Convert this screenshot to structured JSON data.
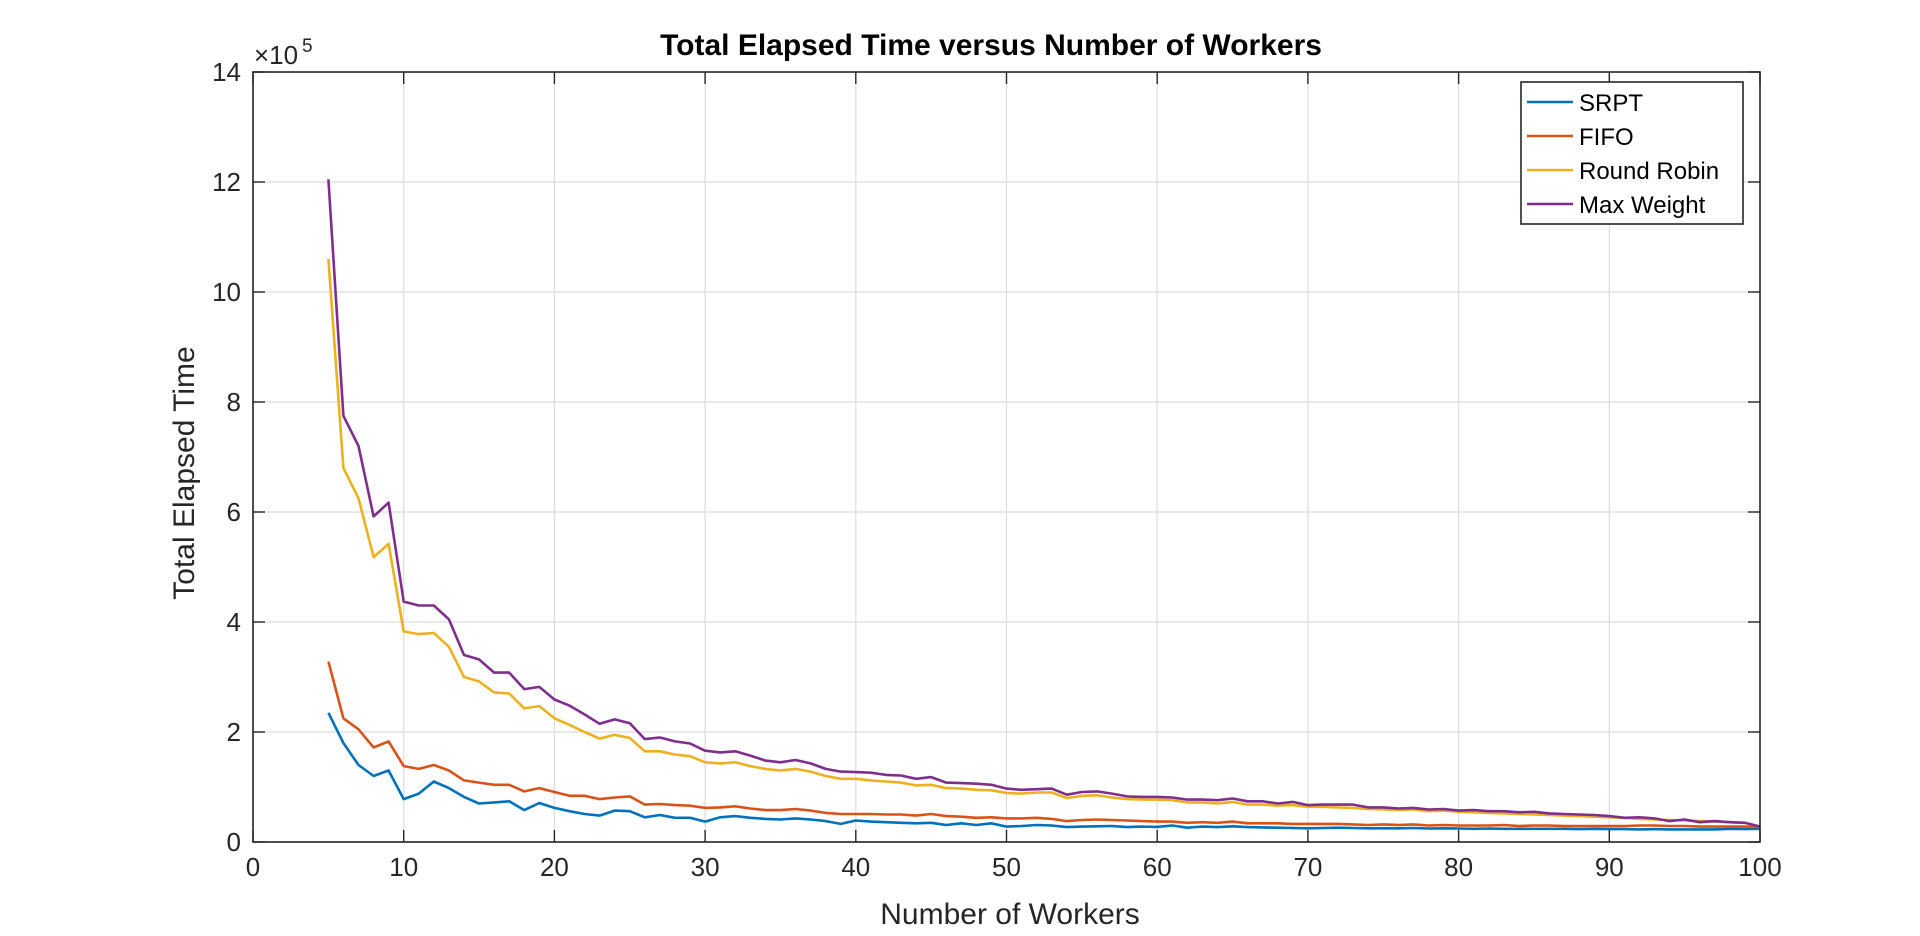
{
  "chart_data": {
    "type": "line",
    "title": "Total Elapsed Time versus Number of Workers",
    "xlabel": "Number of Workers",
    "ylabel": "Total Elapsed Time",
    "xlim": [
      0,
      100
    ],
    "ylim": [
      0,
      1400000
    ],
    "x_ticks": [
      0,
      10,
      20,
      30,
      40,
      50,
      60,
      70,
      80,
      90,
      100
    ],
    "y_ticks": [
      0,
      2,
      4,
      6,
      8,
      10,
      12,
      14
    ],
    "y_exponent_label": "×10",
    "y_exponent_power": "5",
    "grid": true,
    "legend_position": "top-right",
    "x": [
      5,
      6,
      7,
      8,
      9,
      10,
      11,
      12,
      13,
      14,
      15,
      16,
      17,
      18,
      19,
      20,
      21,
      22,
      23,
      24,
      25,
      26,
      27,
      28,
      29,
      30,
      31,
      32,
      33,
      34,
      35,
      36,
      37,
      38,
      39,
      40,
      41,
      42,
      43,
      44,
      45,
      46,
      47,
      48,
      49,
      50,
      51,
      52,
      53,
      54,
      55,
      56,
      57,
      58,
      59,
      60,
      61,
      62,
      63,
      64,
      65,
      66,
      67,
      68,
      69,
      70,
      71,
      72,
      73,
      74,
      75,
      76,
      77,
      78,
      79,
      80,
      81,
      82,
      83,
      84,
      85,
      86,
      87,
      88,
      89,
      90,
      91,
      92,
      93,
      94,
      95,
      96,
      97,
      98,
      99,
      100
    ],
    "series": [
      {
        "name": "SRPT",
        "color": "#0072BD",
        "values": [
          235000,
          180000,
          140000,
          120000,
          130000,
          78000,
          88000,
          110000,
          98000,
          82000,
          70000,
          72000,
          74000,
          58000,
          71000,
          62000,
          56000,
          51000,
          48000,
          57000,
          56000,
          45000,
          49000,
          44000,
          44000,
          37000,
          45000,
          47000,
          44000,
          42000,
          41000,
          43000,
          41000,
          38000,
          33000,
          39000,
          37000,
          36000,
          35000,
          34000,
          35000,
          31000,
          34000,
          31000,
          34000,
          28000,
          29000,
          31000,
          30000,
          27000,
          28000,
          28500,
          29000,
          27000,
          28000,
          27500,
          30000,
          26000,
          28000,
          27000,
          28500,
          27000,
          26500,
          26000,
          25500,
          25000,
          25500,
          26000,
          25500,
          25000,
          25000,
          25000,
          25500,
          24500,
          25000,
          24500,
          24000,
          24500,
          24000,
          24000,
          24000,
          24000,
          24000,
          23500,
          24000,
          23500,
          23500,
          23000,
          23500,
          23000,
          23000,
          23000,
          23000,
          24000,
          23500,
          24000
        ]
      },
      {
        "name": "FIFO",
        "color": "#D95319",
        "values": [
          328000,
          225000,
          205000,
          172000,
          183000,
          138000,
          133000,
          140000,
          130000,
          112000,
          108000,
          104000,
          104000,
          92000,
          98000,
          91000,
          84000,
          84000,
          78000,
          81000,
          83000,
          68000,
          69000,
          67000,
          66000,
          62000,
          63000,
          65000,
          61000,
          58000,
          58000,
          60000,
          57000,
          53000,
          51000,
          51000,
          51000,
          50000,
          50000,
          48000,
          51000,
          47000,
          46000,
          44000,
          45000,
          43000,
          43000,
          44000,
          42000,
          38000,
          40000,
          41000,
          40000,
          39000,
          38000,
          37000,
          37000,
          35000,
          36000,
          35000,
          37000,
          34000,
          34000,
          34000,
          33000,
          33000,
          33000,
          33000,
          32000,
          31000,
          32000,
          31000,
          32000,
          30000,
          31000,
          30000,
          30000,
          30000,
          31000,
          29000,
          30000,
          30000,
          29000,
          29000,
          29000,
          29000,
          29000,
          30000,
          30000,
          29000,
          29000,
          28000,
          28000,
          28000,
          28000,
          27000
        ]
      },
      {
        "name": "Round Robin",
        "color": "#EDB120",
        "values": [
          1060000,
          680000,
          625000,
          518000,
          542000,
          383000,
          378000,
          380000,
          355000,
          300000,
          292000,
          272000,
          270000,
          243000,
          247000,
          225000,
          213000,
          200000,
          188000,
          195000,
          189000,
          165000,
          165000,
          159000,
          156000,
          145000,
          143000,
          145000,
          138000,
          133000,
          130000,
          133000,
          128000,
          120000,
          115000,
          115000,
          112000,
          110000,
          108000,
          103000,
          104000,
          98000,
          97000,
          95000,
          94000,
          89000,
          88000,
          90000,
          90000,
          80000,
          84000,
          85000,
          81000,
          78000,
          77000,
          77000,
          76000,
          72000,
          72000,
          70000,
          73000,
          68000,
          68000,
          66000,
          67000,
          64000,
          64000,
          63000,
          62000,
          60000,
          59000,
          58000,
          59000,
          56000,
          57000,
          55000,
          54000,
          53000,
          52000,
          51000,
          50000,
          49000,
          48000,
          47000,
          46000,
          45000,
          44000,
          42000,
          41000,
          40000,
          39000,
          38000,
          37000,
          36000,
          35000,
          28000
        ]
      },
      {
        "name": "Max Weight",
        "color": "#7E2F8E",
        "values": [
          1205000,
          775000,
          720000,
          592000,
          617000,
          437000,
          430000,
          430000,
          405000,
          340000,
          332000,
          308000,
          308000,
          278000,
          282000,
          259000,
          248000,
          232000,
          215000,
          223000,
          216000,
          187000,
          190000,
          183000,
          179000,
          166000,
          163000,
          165000,
          157000,
          148000,
          145000,
          149000,
          143000,
          133000,
          128000,
          127000,
          126000,
          122000,
          121000,
          115000,
          118000,
          108000,
          107000,
          106000,
          104000,
          97000,
          95000,
          96000,
          97000,
          86000,
          91000,
          92000,
          88000,
          83000,
          82000,
          82000,
          81000,
          77000,
          77000,
          76000,
          79000,
          74000,
          74000,
          70000,
          73000,
          67000,
          68000,
          68000,
          68000,
          63000,
          63000,
          61000,
          62000,
          59000,
          60000,
          57000,
          58000,
          56000,
          56000,
          54000,
          55000,
          52000,
          51000,
          50000,
          49000,
          47000,
          44000,
          45000,
          43000,
          38000,
          41000,
          36000,
          38000,
          36000,
          35000,
          28000
        ]
      }
    ]
  }
}
